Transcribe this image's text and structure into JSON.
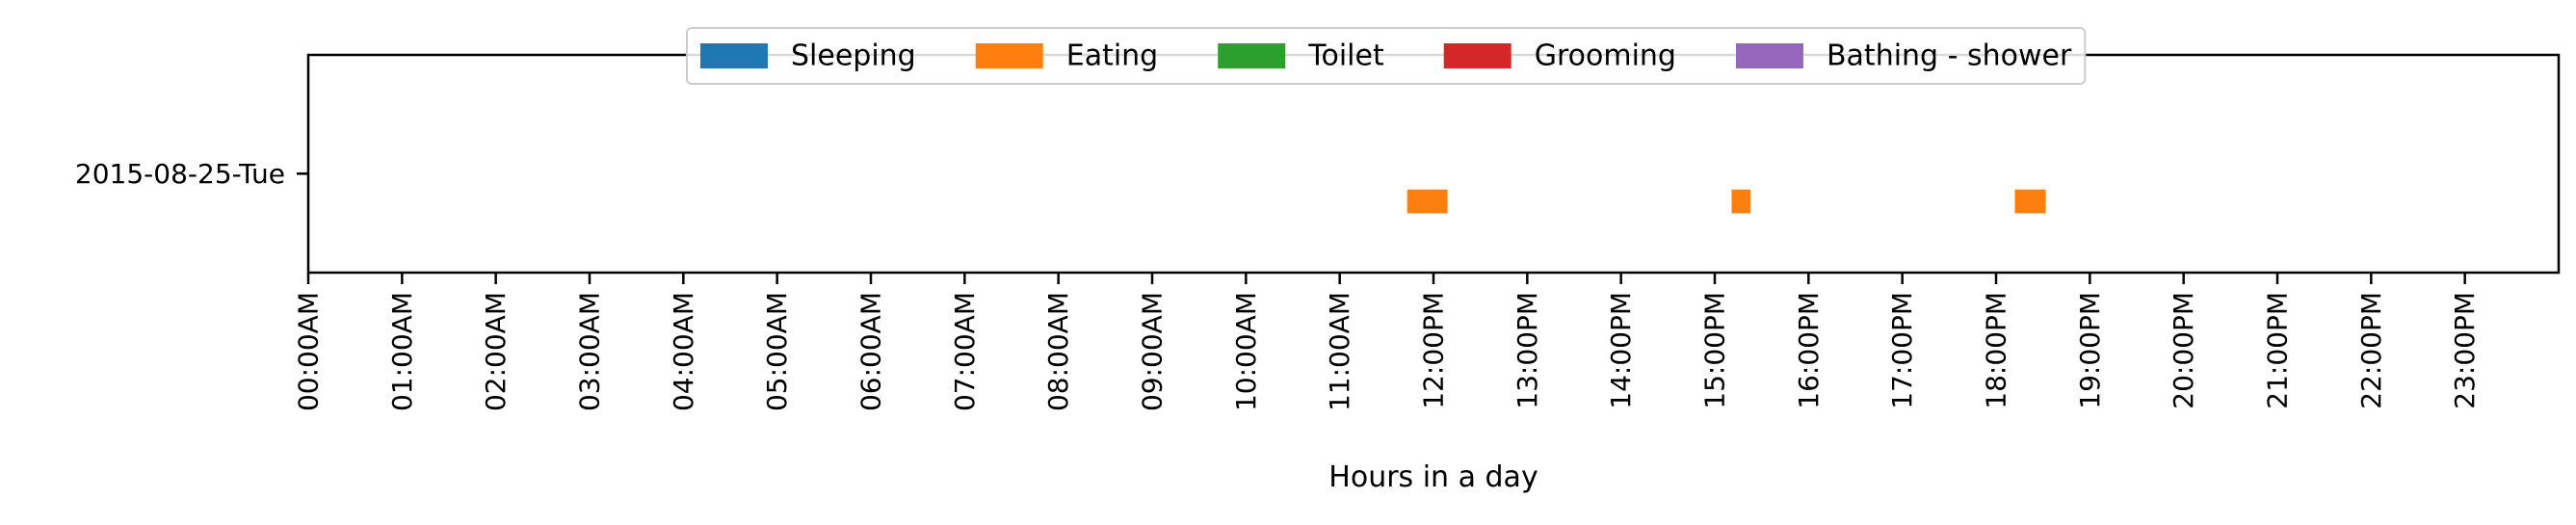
{
  "chart_data": {
    "type": "timeline",
    "title": "",
    "xlabel": "Hours in a day",
    "ylabel": "",
    "xlim": [
      0,
      24
    ],
    "ylim": [
      0.5,
      1.6
    ],
    "grid": false,
    "legend_position": "top-center",
    "x_ticks": [
      {
        "value": 0,
        "label": "00:00AM"
      },
      {
        "value": 1,
        "label": "01:00AM"
      },
      {
        "value": 2,
        "label": "02:00AM"
      },
      {
        "value": 3,
        "label": "03:00AM"
      },
      {
        "value": 4,
        "label": "04:00AM"
      },
      {
        "value": 5,
        "label": "05:00AM"
      },
      {
        "value": 6,
        "label": "06:00AM"
      },
      {
        "value": 7,
        "label": "07:00AM"
      },
      {
        "value": 8,
        "label": "08:00AM"
      },
      {
        "value": 9,
        "label": "09:00AM"
      },
      {
        "value": 10,
        "label": "10:00AM"
      },
      {
        "value": 11,
        "label": "11:00AM"
      },
      {
        "value": 12,
        "label": "12:00PM"
      },
      {
        "value": 13,
        "label": "13:00PM"
      },
      {
        "value": 14,
        "label": "14:00PM"
      },
      {
        "value": 15,
        "label": "15:00PM"
      },
      {
        "value": 16,
        "label": "16:00PM"
      },
      {
        "value": 17,
        "label": "17:00PM"
      },
      {
        "value": 18,
        "label": "18:00PM"
      },
      {
        "value": 19,
        "label": "19:00PM"
      },
      {
        "value": 20,
        "label": "20:00PM"
      },
      {
        "value": 21,
        "label": "21:00PM"
      },
      {
        "value": 22,
        "label": "22:00PM"
      },
      {
        "value": 23,
        "label": "23:00PM"
      }
    ],
    "rows": [
      {
        "label": "2015-08-25-Tue",
        "value": 1
      }
    ],
    "legend": [
      {
        "name": "Sleeping",
        "color": "#1f77b4"
      },
      {
        "name": "Eating",
        "color": "#ff7f0e"
      },
      {
        "name": "Toilet",
        "color": "#2ca02c"
      },
      {
        "name": "Grooming",
        "color": "#d62728"
      },
      {
        "name": "Bathing - shower",
        "color": "#9467bd"
      }
    ],
    "events": [
      {
        "activity": "Eating",
        "row": "2015-08-25-Tue",
        "start": 11.72,
        "end": 12.15,
        "y_low": 0.8,
        "y_high": 0.92
      },
      {
        "activity": "Eating",
        "row": "2015-08-25-Tue",
        "start": 15.18,
        "end": 15.38,
        "y_low": 0.8,
        "y_high": 0.92
      },
      {
        "activity": "Eating",
        "row": "2015-08-25-Tue",
        "start": 18.2,
        "end": 18.53,
        "y_low": 0.8,
        "y_high": 0.92
      }
    ]
  }
}
